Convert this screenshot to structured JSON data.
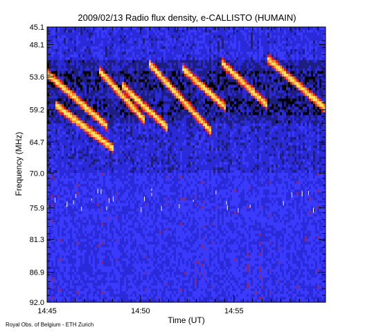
{
  "chart_data": {
    "type": "heatmap",
    "title": "2009/02/13  Radio flux density, e-CALLISTO (HUMAIN)",
    "xlabel": "Time (UT)",
    "ylabel": "Frequency (MHz)",
    "x_ticks": [
      "14:45",
      "14:50",
      "14:55"
    ],
    "x_tick_minutes": [
      0,
      5,
      10
    ],
    "x_range_minutes": [
      0,
      14.9
    ],
    "y_ticks": [
      "45.1",
      "48.1",
      "53.6",
      "59.2",
      "64.7",
      "70.0",
      "75.9",
      "81.3",
      "86.9",
      "92.0"
    ],
    "y_tick_values": [
      45.1,
      48.1,
      53.6,
      59.2,
      64.7,
      70.0,
      75.9,
      81.3,
      86.9,
      92.0
    ],
    "y_range": [
      45.1,
      92.0
    ],
    "y_inverted": true,
    "colormap": [
      "#000000",
      "#1e1e82",
      "#2a2ad8",
      "#3a3aff",
      "#7a2a8a",
      "#e02020",
      "#ff8a2a",
      "#ffe060"
    ],
    "bursts": [
      {
        "start_minute": 0.0,
        "end_minute": 3.2,
        "freq_start": 53.0,
        "freq_end": 62.0
      },
      {
        "start_minute": 0.5,
        "end_minute": 3.6,
        "freq_start": 58.5,
        "freq_end": 66.0
      },
      {
        "start_minute": 2.8,
        "end_minute": 5.2,
        "freq_start": 52.5,
        "freq_end": 61.0
      },
      {
        "start_minute": 4.0,
        "end_minute": 6.5,
        "freq_start": 55.0,
        "freq_end": 62.5
      },
      {
        "start_minute": 5.5,
        "end_minute": 8.8,
        "freq_start": 51.5,
        "freq_end": 63.0
      },
      {
        "start_minute": 7.2,
        "end_minute": 9.6,
        "freq_start": 52.0,
        "freq_end": 59.0
      },
      {
        "start_minute": 9.3,
        "end_minute": 11.8,
        "freq_start": 51.0,
        "freq_end": 58.5
      },
      {
        "start_minute": 11.8,
        "end_minute": 14.9,
        "freq_start": 50.5,
        "freq_end": 59.0
      }
    ],
    "grid": false,
    "legend": "none"
  },
  "credit": "Royal Obs. of Belgium - ETH Zurich"
}
